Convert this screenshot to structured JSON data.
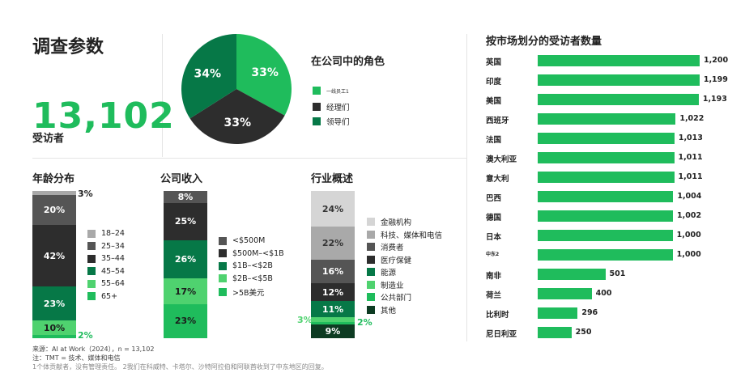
{
  "header": {
    "title": "调查参数"
  },
  "respondents": {
    "count": "13,102",
    "label": "受访者"
  },
  "colors": {
    "green": "#1fbc5c",
    "dark_green": "#067847",
    "charcoal": "#2d2d2d",
    "light_green": "#4fd26f",
    "gray": "#555555",
    "light_gray": "#a9a9a9",
    "pale_gray": "#d5d5d5",
    "deep_green": "#0d3b22"
  },
  "chart_data": [
    {
      "type": "pie",
      "title": "在公司中的角色",
      "slices": [
        {
          "name": "一线员工1",
          "value": 33,
          "label": "33%",
          "color": "#1fbc5c"
        },
        {
          "name": "经理们",
          "value": 33,
          "label": "33%",
          "color": "#2d2d2d"
        },
        {
          "name": "领导们",
          "value": 34,
          "label": "34%",
          "color": "#067847"
        }
      ]
    },
    {
      "type": "bar",
      "title": "年龄分布",
      "stacked": true,
      "segments": [
        {
          "name": "65+",
          "value": 2,
          "label": "2%",
          "color": "#1fbc5c"
        },
        {
          "name": "55–64",
          "value": 10,
          "label": "10%",
          "color": "#4fd26f"
        },
        {
          "name": "45–54",
          "value": 23,
          "label": "23%",
          "color": "#067847"
        },
        {
          "name": "35–44",
          "value": 42,
          "label": "42%",
          "color": "#2d2d2d"
        },
        {
          "name": "25–34",
          "value": 20,
          "label": "20%",
          "color": "#555555"
        },
        {
          "name": "18–24",
          "value": 3,
          "label": "3%",
          "color": "#a9a9a9"
        }
      ],
      "legend": [
        "18–24",
        "25–34",
        "35–44",
        "45–54",
        "55–64",
        "65+"
      ]
    },
    {
      "type": "bar",
      "title": "公司收入",
      "stacked": true,
      "segments": [
        {
          "name": ">5B美元",
          "value": 23,
          "label": "23%",
          "color": "#1fbc5c"
        },
        {
          "name": "$2B–<$5B",
          "value": 17,
          "label": "17%",
          "color": "#4fd26f"
        },
        {
          "name": "$1B–<$2B",
          "value": 26,
          "label": "26%",
          "color": "#067847"
        },
        {
          "name": "$500M–<$1B",
          "value": 25,
          "label": "25%",
          "color": "#2d2d2d"
        },
        {
          "name": "<$500M",
          "value": 8,
          "label": "8%",
          "color": "#555555"
        }
      ],
      "legend": [
        "<$500M",
        "$500M–<$1B",
        "$1B–<$2B",
        "$2B–<$5B",
        ">5B美元"
      ]
    },
    {
      "type": "bar",
      "title": "行业概述",
      "stacked": true,
      "segments": [
        {
          "name": "其他",
          "value": 9,
          "label": "9%",
          "color": "#0d3b22"
        },
        {
          "name": "公共部门",
          "value": 2,
          "label": "2%",
          "color": "#1fbc5c"
        },
        {
          "name": "制造业",
          "value": 3,
          "label": "3%",
          "color": "#4fd26f"
        },
        {
          "name": "能源",
          "value": 11,
          "label": "11%",
          "color": "#067847"
        },
        {
          "name": "医疗保健",
          "value": 12,
          "label": "12%",
          "color": "#2d2d2d"
        },
        {
          "name": "消费者",
          "value": 16,
          "label": "16%",
          "color": "#555555"
        },
        {
          "name": "科技、媒体和电信",
          "value": 22,
          "label": "22%",
          "color": "#a9a9a9"
        },
        {
          "name": "金融机构",
          "value": 24,
          "label": "24%",
          "color": "#d5d5d5"
        }
      ],
      "legend": [
        "金融机构",
        "科技、媒体和电信",
        "消费者",
        "医疗保健",
        "能源",
        "制造业",
        "公共部门",
        "其他"
      ]
    },
    {
      "type": "bar",
      "orientation": "horizontal",
      "title": "按市场划分的受访者数量",
      "categories": [
        "英国",
        "印度",
        "美国",
        "西班牙",
        "法国",
        "澳大利亚",
        "意大利",
        "巴西",
        "德国",
        "日本",
        "中东2",
        "南非",
        "荷兰",
        "比利时",
        "尼日利亚"
      ],
      "values": [
        1200,
        1199,
        1193,
        1022,
        1013,
        1011,
        1011,
        1004,
        1002,
        1000,
        1000,
        501,
        400,
        296,
        250
      ],
      "value_labels": [
        "1,200",
        "1,199",
        "1,193",
        "1,022",
        "1,013",
        "1,011",
        "1,011",
        "1,004",
        "1,002",
        "1,000",
        "1,000",
        "501",
        "400",
        "296",
        "250"
      ],
      "color": "#1fbc5c"
    }
  ],
  "footer": {
    "source": "来源：AI at Work（2024），n = 13,102",
    "note": "注：TMT = 技术、媒体和电信",
    "footnote": "1个体贡献者，没有管理责任。 2我们在科威特、卡塔尔、沙特阿拉伯和阿联酋收到了中东地区的回复。"
  }
}
